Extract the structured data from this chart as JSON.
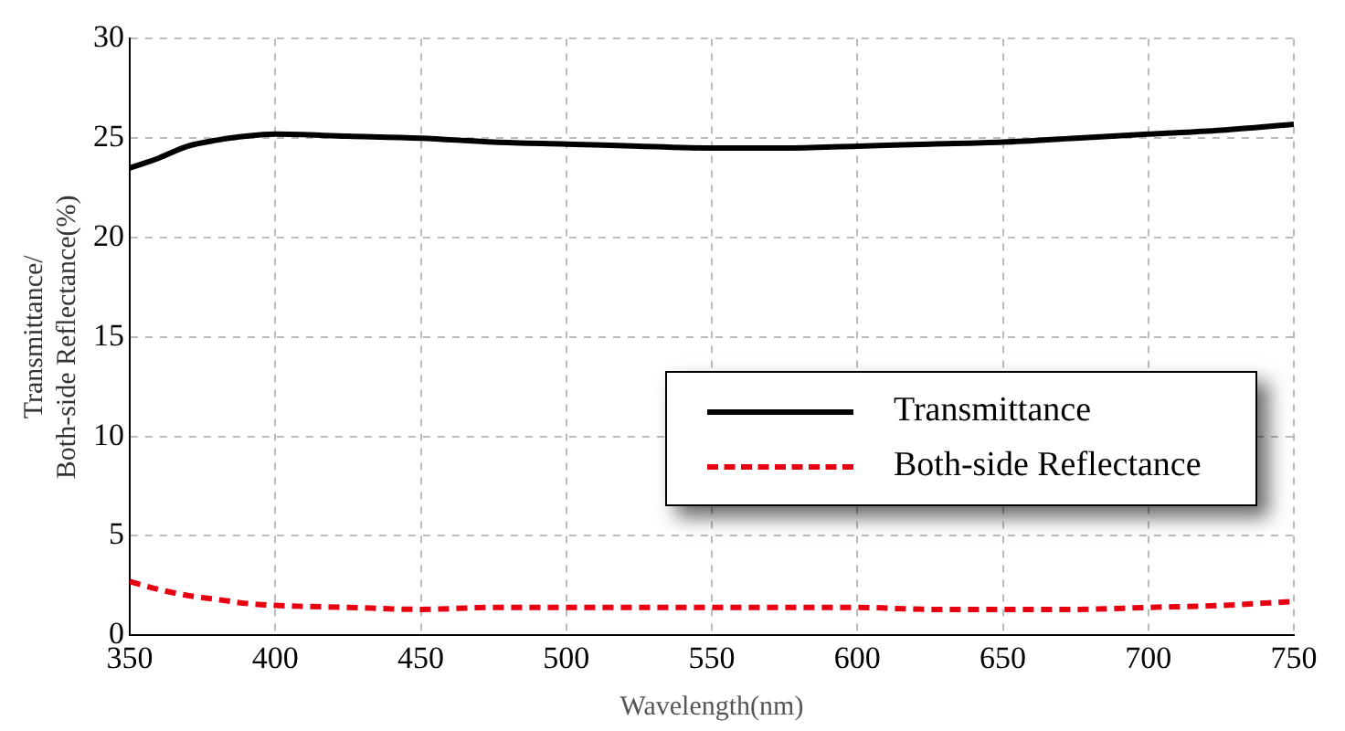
{
  "chart_data": {
    "type": "line",
    "xlabel": "Wavelength(nm)",
    "ylabel": "Transmittance/\nBoth-side Reflectance(%)",
    "xlim": [
      350,
      750
    ],
    "xticks": [
      350,
      400,
      450,
      500,
      550,
      600,
      650,
      700,
      750
    ],
    "ylim": [
      0,
      30
    ],
    "yticks": [
      0,
      5,
      10,
      15,
      20,
      25,
      30
    ],
    "grid": true,
    "legend": "right",
    "marker": "none",
    "series": [
      {
        "name": "Transmittance",
        "color": "#000000",
        "line_style": "solid",
        "x": [
          350,
          360,
          370,
          380,
          390,
          400,
          425,
          450,
          475,
          500,
          525,
          550,
          575,
          600,
          625,
          650,
          675,
          700,
          725,
          750
        ],
        "values": [
          23.5,
          24.0,
          24.6,
          24.9,
          25.1,
          25.2,
          25.1,
          25.0,
          24.8,
          24.7,
          24.6,
          24.5,
          24.5,
          24.6,
          24.7,
          24.8,
          25.0,
          25.2,
          25.4,
          25.7
        ]
      },
      {
        "name": "Both-side Reflectance",
        "color": "#e60012",
        "line_style": "dashed",
        "x": [
          350,
          360,
          370,
          380,
          390,
          400,
          425,
          450,
          475,
          500,
          525,
          550,
          575,
          600,
          625,
          650,
          675,
          700,
          725,
          750
        ],
        "values": [
          2.7,
          2.3,
          2.0,
          1.8,
          1.6,
          1.5,
          1.4,
          1.3,
          1.4,
          1.4,
          1.4,
          1.4,
          1.4,
          1.4,
          1.3,
          1.3,
          1.3,
          1.4,
          1.5,
          1.7
        ]
      }
    ]
  }
}
